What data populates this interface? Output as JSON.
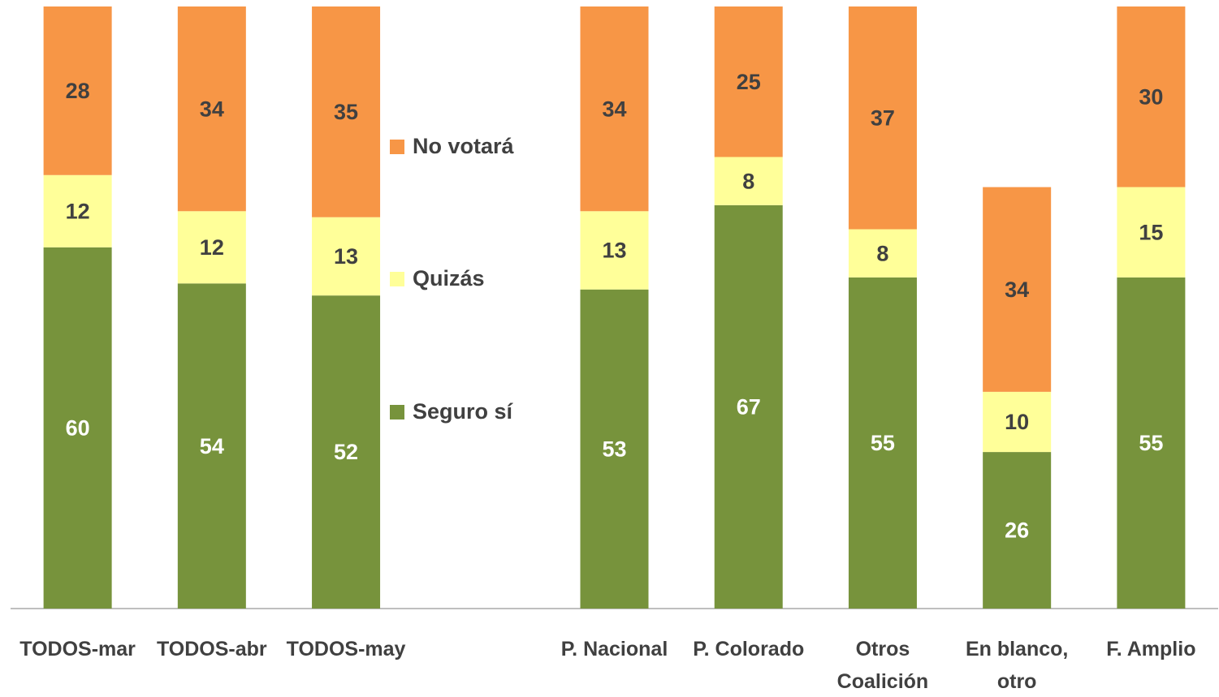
{
  "chart_data": {
    "type": "stacked_bar",
    "categories": [
      "TODOS-mar",
      "TODOS-abr",
      "TODOS-may",
      null,
      "P. Nacional",
      "P. Colorado",
      "Otros Coalición",
      "En blanco, otro",
      "F. Amplio"
    ],
    "series": [
      {
        "name": "Seguro sí",
        "color": "#77933c",
        "label_color": "#ffffff",
        "values": [
          60,
          54,
          52,
          null,
          53,
          67,
          55,
          26,
          55
        ]
      },
      {
        "name": "Quizás",
        "color": "#ffff99",
        "label_color": "#404040",
        "values": [
          12,
          12,
          13,
          null,
          13,
          8,
          8,
          10,
          15
        ]
      },
      {
        "name": "No votará",
        "color": "#f79646",
        "label_color": "#404040",
        "values": [
          28,
          34,
          35,
          null,
          34,
          25,
          37,
          34,
          30
        ]
      }
    ],
    "ylim": [
      0,
      100
    ],
    "legend": "center"
  }
}
